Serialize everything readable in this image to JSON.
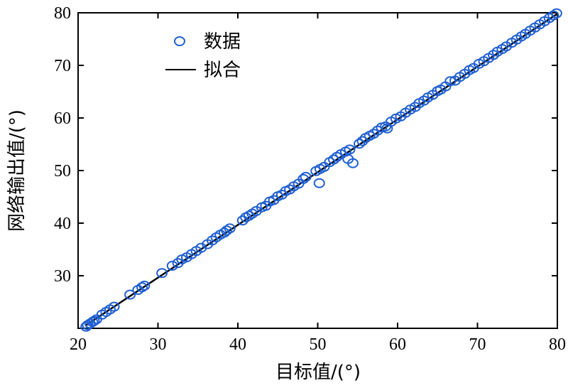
{
  "chart_data": {
    "type": "scatter",
    "title": "",
    "xlabel": "目标值/(°)",
    "ylabel": "网络输出值/(°)",
    "xlim": [
      20,
      80
    ],
    "ylim": [
      20,
      80
    ],
    "xticks": [
      "20",
      "30",
      "40",
      "50",
      "60",
      "70",
      "80"
    ],
    "yticks": [
      "30",
      "40",
      "50",
      "60",
      "70",
      "80"
    ],
    "grid": false,
    "legend_position": "top-left",
    "series": [
      {
        "name": "数据",
        "kind": "scatter",
        "marker": "open-circle",
        "color": "#1f5fd1",
        "points": [
          [
            21.0,
            20.3
          ],
          [
            21.2,
            20.6
          ],
          [
            21.5,
            20.9
          ],
          [
            21.8,
            21.2
          ],
          [
            22.0,
            21.4
          ],
          [
            22.3,
            21.7
          ],
          [
            23.0,
            22.6
          ],
          [
            23.5,
            23.1
          ],
          [
            24.0,
            23.6
          ],
          [
            24.5,
            24.1
          ],
          [
            26.5,
            26.4
          ],
          [
            27.5,
            27.3
          ],
          [
            28.0,
            27.8
          ],
          [
            28.3,
            28.1
          ],
          [
            30.5,
            30.5
          ],
          [
            31.8,
            31.9
          ],
          [
            32.5,
            32.4
          ],
          [
            33.0,
            33.1
          ],
          [
            33.6,
            33.5
          ],
          [
            34.2,
            34.1
          ],
          [
            34.8,
            34.7
          ],
          [
            35.4,
            35.3
          ],
          [
            36.2,
            36.0
          ],
          [
            36.8,
            36.7
          ],
          [
            37.3,
            37.3
          ],
          [
            37.8,
            37.8
          ],
          [
            38.3,
            38.2
          ],
          [
            38.6,
            38.6
          ],
          [
            39.0,
            39.0
          ],
          [
            40.6,
            40.5
          ],
          [
            41.0,
            41.1
          ],
          [
            41.4,
            41.4
          ],
          [
            41.8,
            41.8
          ],
          [
            42.3,
            42.3
          ],
          [
            43.0,
            43.0
          ],
          [
            43.5,
            43.3
          ],
          [
            44.0,
            44.1
          ],
          [
            44.5,
            44.4
          ],
          [
            45.0,
            45.1
          ],
          [
            45.5,
            45.4
          ],
          [
            46.0,
            46.1
          ],
          [
            46.5,
            46.4
          ],
          [
            47.0,
            47.0
          ],
          [
            47.6,
            47.5
          ],
          [
            48.2,
            48.4
          ],
          [
            48.5,
            48.8
          ],
          [
            49.8,
            49.9
          ],
          [
            50.2,
            47.6
          ],
          [
            50.3,
            50.3
          ],
          [
            50.8,
            50.7
          ],
          [
            51.5,
            51.6
          ],
          [
            52.0,
            52.1
          ],
          [
            52.4,
            52.6
          ],
          [
            52.9,
            53.1
          ],
          [
            53.5,
            53.6
          ],
          [
            53.8,
            52.2
          ],
          [
            54.0,
            54.0
          ],
          [
            54.4,
            51.4
          ],
          [
            55.2,
            55.1
          ],
          [
            55.6,
            55.6
          ],
          [
            56.0,
            56.2
          ],
          [
            56.5,
            56.6
          ],
          [
            57.0,
            57.0
          ],
          [
            57.5,
            57.6
          ],
          [
            58.0,
            58.2
          ],
          [
            58.5,
            58.4
          ],
          [
            58.7,
            58.0
          ],
          [
            59.2,
            59.3
          ],
          [
            59.8,
            59.9
          ],
          [
            60.4,
            60.3
          ],
          [
            61.0,
            61.0
          ],
          [
            61.6,
            61.6
          ],
          [
            62.2,
            62.1
          ],
          [
            62.7,
            62.8
          ],
          [
            63.3,
            63.3
          ],
          [
            63.8,
            63.9
          ],
          [
            64.4,
            64.4
          ],
          [
            65.0,
            65.1
          ],
          [
            65.4,
            65.4
          ],
          [
            66.0,
            66.0
          ],
          [
            66.6,
            67.0
          ],
          [
            67.2,
            67.1
          ],
          [
            67.8,
            67.8
          ],
          [
            68.4,
            68.4
          ],
          [
            69.0,
            69.1
          ],
          [
            69.5,
            69.5
          ],
          [
            70.2,
            70.3
          ],
          [
            70.8,
            70.8
          ],
          [
            71.4,
            71.4
          ],
          [
            72.0,
            72.0
          ],
          [
            72.5,
            72.6
          ],
          [
            73.1,
            73.1
          ],
          [
            73.6,
            73.6
          ],
          [
            74.3,
            74.3
          ],
          [
            74.9,
            74.9
          ],
          [
            75.5,
            75.5
          ],
          [
            76.0,
            76.0
          ],
          [
            76.6,
            76.6
          ],
          [
            77.2,
            77.2
          ],
          [
            77.8,
            77.8
          ],
          [
            78.4,
            78.4
          ],
          [
            79.0,
            79.0
          ],
          [
            79.5,
            79.5
          ],
          [
            79.9,
            79.9
          ]
        ]
      },
      {
        "name": "拟合",
        "kind": "line",
        "color": "#000000",
        "x": [
          21,
          80
        ],
        "y": [
          20.6,
          79.8
        ]
      }
    ]
  }
}
